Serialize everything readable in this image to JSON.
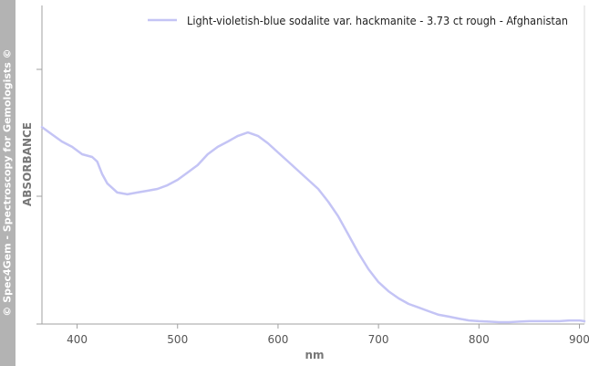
{
  "watermark": "© Spec4Gem - Spectroscopy for Gemologists ©",
  "chart_data": {
    "type": "line",
    "title": "",
    "xlabel": "nm",
    "ylabel": "ABSORBANCE",
    "xlim": [
      365,
      905
    ],
    "ylim": [
      0,
      1
    ],
    "x_ticks": [
      400,
      500,
      600,
      700,
      800,
      900
    ],
    "y_ticks_labeled": false,
    "grid": false,
    "legend_position": "top-right",
    "colors": {
      "series": "#c4c4f5",
      "axis": "#a0a0a0"
    },
    "series": [
      {
        "name": "Light-violetish-blue sodalite var. hackmanite - 3.73 ct rough - Afghanistan",
        "x": [
          365,
          375,
          385,
          395,
          405,
          415,
          420,
          425,
          430,
          440,
          450,
          460,
          470,
          480,
          490,
          500,
          510,
          520,
          530,
          540,
          550,
          560,
          570,
          580,
          590,
          600,
          610,
          620,
          630,
          640,
          650,
          660,
          670,
          680,
          690,
          700,
          710,
          720,
          730,
          740,
          750,
          760,
          770,
          780,
          790,
          800,
          810,
          820,
          830,
          840,
          850,
          860,
          870,
          880,
          890,
          900,
          905
        ],
        "y": [
          0.769,
          0.74,
          0.712,
          0.691,
          0.662,
          0.651,
          0.633,
          0.583,
          0.547,
          0.511,
          0.504,
          0.511,
          0.518,
          0.525,
          0.54,
          0.561,
          0.59,
          0.619,
          0.662,
          0.691,
          0.712,
          0.734,
          0.748,
          0.734,
          0.705,
          0.669,
          0.633,
          0.597,
          0.561,
          0.525,
          0.475,
          0.417,
          0.345,
          0.273,
          0.209,
          0.158,
          0.122,
          0.094,
          0.072,
          0.058,
          0.043,
          0.029,
          0.022,
          0.014,
          0.007,
          0.004,
          0.002,
          0.0,
          0.0,
          0.002,
          0.004,
          0.004,
          0.004,
          0.004,
          0.007,
          0.007,
          0.004
        ]
      }
    ]
  }
}
